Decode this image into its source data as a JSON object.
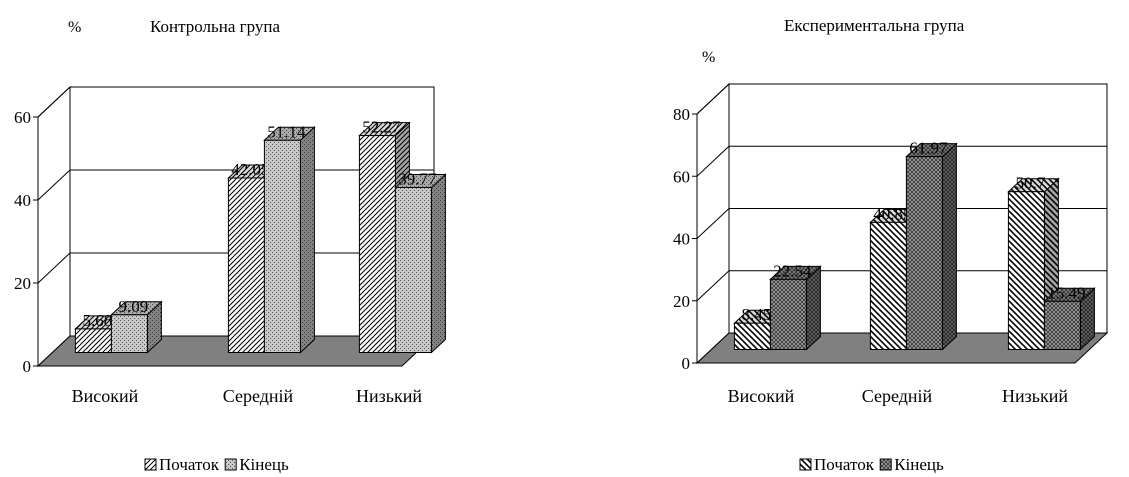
{
  "chart_data": [
    {
      "type": "bar",
      "title": "Контрольна група",
      "ylabel": "%",
      "categories": [
        "Високий",
        "Середній",
        "Низький"
      ],
      "ylim": [
        0,
        60
      ],
      "yticks": [
        0,
        20,
        40,
        60
      ],
      "grid": true,
      "legend_position": "bottom",
      "series": [
        {
          "name": "Початок",
          "values": [
            5.68,
            42.05,
            52.27
          ],
          "pattern": "fine-diagonal"
        },
        {
          "name": "Кінець",
          "values": [
            9.09,
            51.14,
            39.77
          ],
          "pattern": "crosshatch"
        }
      ],
      "data_labels": [
        [
          "5.68",
          "42.05",
          "52.27"
        ],
        [
          "9.09",
          "51.14",
          "39.77"
        ]
      ],
      "floor_color": "#808080"
    },
    {
      "type": "bar",
      "title": "Експериментальна група",
      "ylabel": "%",
      "categories": [
        "Високий",
        "Середній",
        "Низький"
      ],
      "ylim": [
        0,
        80
      ],
      "yticks": [
        0,
        20,
        40,
        60,
        80
      ],
      "grid": true,
      "legend_position": "bottom",
      "series": [
        {
          "name": "Початок",
          "values": [
            8.45,
            40.85,
            50.7
          ],
          "pattern": "bold-diagonal"
        },
        {
          "name": "Кінець",
          "values": [
            22.54,
            61.97,
            15.49
          ],
          "pattern": "dense-crosshatch"
        }
      ],
      "data_labels": [
        [
          "8.45",
          "40.85",
          "50.7"
        ],
        [
          "22.54",
          "61.97",
          "15.49"
        ]
      ],
      "floor_color": "#808080"
    }
  ]
}
